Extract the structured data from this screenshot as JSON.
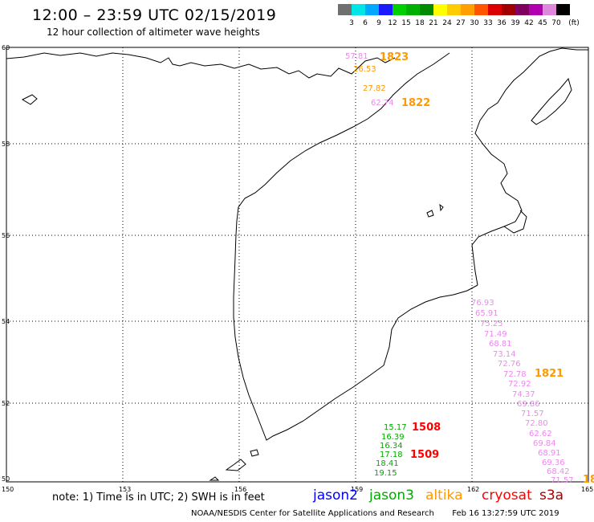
{
  "header": {
    "title": "12:00 – 23:59 UTC 02/15/2019",
    "subtitle": "12 hour collection of altimeter wave heights"
  },
  "scale": {
    "unit": "(ft)",
    "bins": [
      {
        "label": "",
        "color": "#707070"
      },
      {
        "label": "3",
        "color": "#00e5e5"
      },
      {
        "label": "6",
        "color": "#00a8ff"
      },
      {
        "label": "9",
        "color": "#1a1aff"
      },
      {
        "label": "12",
        "color": "#00d000"
      },
      {
        "label": "15",
        "color": "#00b000"
      },
      {
        "label": "18",
        "color": "#008a00"
      },
      {
        "label": "21",
        "color": "#ffff00"
      },
      {
        "label": "24",
        "color": "#ffcc00"
      },
      {
        "label": "27",
        "color": "#ffa000"
      },
      {
        "label": "30",
        "color": "#ff5500"
      },
      {
        "label": "33",
        "color": "#dd0000"
      },
      {
        "label": "36",
        "color": "#a00000"
      },
      {
        "label": "39",
        "color": "#800060"
      },
      {
        "label": "42",
        "color": "#b000b0"
      },
      {
        "label": "45",
        "color": "#dd88dd"
      },
      {
        "label": "70",
        "color": "#000000"
      }
    ]
  },
  "axes": {
    "lon_ticks": [
      "150",
      "153",
      "156",
      "159",
      "162",
      "165"
    ],
    "lat_ticks": [
      "60",
      "58",
      "56",
      "54",
      "52",
      "50"
    ]
  },
  "tracks": {
    "t1823": {
      "label": "1823",
      "color": "#ff9900",
      "values": [
        "57.81",
        "26.53"
      ],
      "value_colors": [
        "#ee88ee",
        "#ff9900"
      ]
    },
    "t1822": {
      "label": "1822",
      "color": "#ff9900",
      "values": [
        "27.82",
        "62.74"
      ],
      "value_colors": [
        "#ff9900",
        "#ee88ee"
      ]
    },
    "t1821": {
      "label": "1821",
      "color": "#ff9900",
      "values": [
        "76.93",
        "65.91",
        "75.25",
        "71.49",
        "68.81",
        "73.14",
        "72.76",
        "72.78",
        "72.92",
        "74.37",
        "69.86",
        "71.57",
        "72.80",
        "62.62",
        "69.84",
        "68.91",
        "69.36",
        "68.42",
        "71.57"
      ],
      "value_color": "#ee88ee"
    },
    "t1508": {
      "label": "1508",
      "color": "#ff0000",
      "values": [
        "15.17",
        "16.39",
        "16.34"
      ],
      "value_color": "#00aa00"
    },
    "t1509": {
      "label": "1509",
      "color": "#ff0000",
      "values": [
        "17.18",
        "18.41",
        "19.15"
      ],
      "value_color": "#00aa00"
    },
    "edge_label": {
      "label": "18",
      "color": "#ff9900"
    }
  },
  "footer": {
    "note": "note: 1) Time is in UTC; 2) SWH is in feet",
    "satellites": [
      {
        "name": "jason2",
        "color": "#0000ff"
      },
      {
        "name": "jason3",
        "color": "#00aa00"
      },
      {
        "name": "altika",
        "color": "#ff9900"
      },
      {
        "name": "cryosat",
        "color": "#ff0000"
      },
      {
        "name": "s3a",
        "color": "#aa0000"
      }
    ],
    "credit": "NOAA/NESDIS Center for Satellite Applications and Research",
    "timestamp": "Feb 16 13:27:59 UTC 2019"
  }
}
